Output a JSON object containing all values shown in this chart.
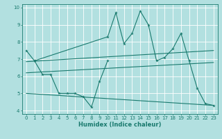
{
  "xlabel": "Humidex (Indice chaleur)",
  "bg_color": "#b2e0e0",
  "grid_color": "#ffffff",
  "line_color": "#1a7a6e",
  "xlim": [
    -0.5,
    23.5
  ],
  "ylim": [
    3.8,
    10.2
  ],
  "yticks": [
    4,
    5,
    6,
    7,
    8,
    9,
    10
  ],
  "xticks": [
    0,
    1,
    2,
    3,
    4,
    5,
    6,
    7,
    8,
    9,
    10,
    11,
    12,
    13,
    14,
    15,
    16,
    17,
    18,
    19,
    20,
    21,
    22,
    23
  ],
  "series_jagged1": {
    "x": [
      0,
      1,
      10,
      11,
      12,
      13,
      14,
      15,
      16,
      17,
      18,
      19,
      20,
      21,
      22,
      23
    ],
    "y": [
      7.5,
      6.9,
      8.3,
      9.7,
      7.9,
      8.5,
      9.8,
      9.0,
      6.9,
      7.1,
      7.6,
      8.5,
      6.9,
      5.3,
      4.4,
      4.3
    ]
  },
  "series_jagged2": {
    "x": [
      1,
      2,
      3,
      4,
      5,
      6,
      7,
      8,
      9,
      10
    ],
    "y": [
      6.9,
      6.1,
      6.1,
      5.0,
      5.0,
      5.0,
      4.8,
      4.2,
      5.7,
      6.9
    ]
  },
  "trend1": {
    "x": [
      0,
      23
    ],
    "y": [
      6.85,
      7.5
    ]
  },
  "trend2": {
    "x": [
      0,
      23
    ],
    "y": [
      6.2,
      6.8
    ]
  },
  "trend3": {
    "x": [
      0,
      23
    ],
    "y": [
      5.0,
      4.3
    ]
  }
}
